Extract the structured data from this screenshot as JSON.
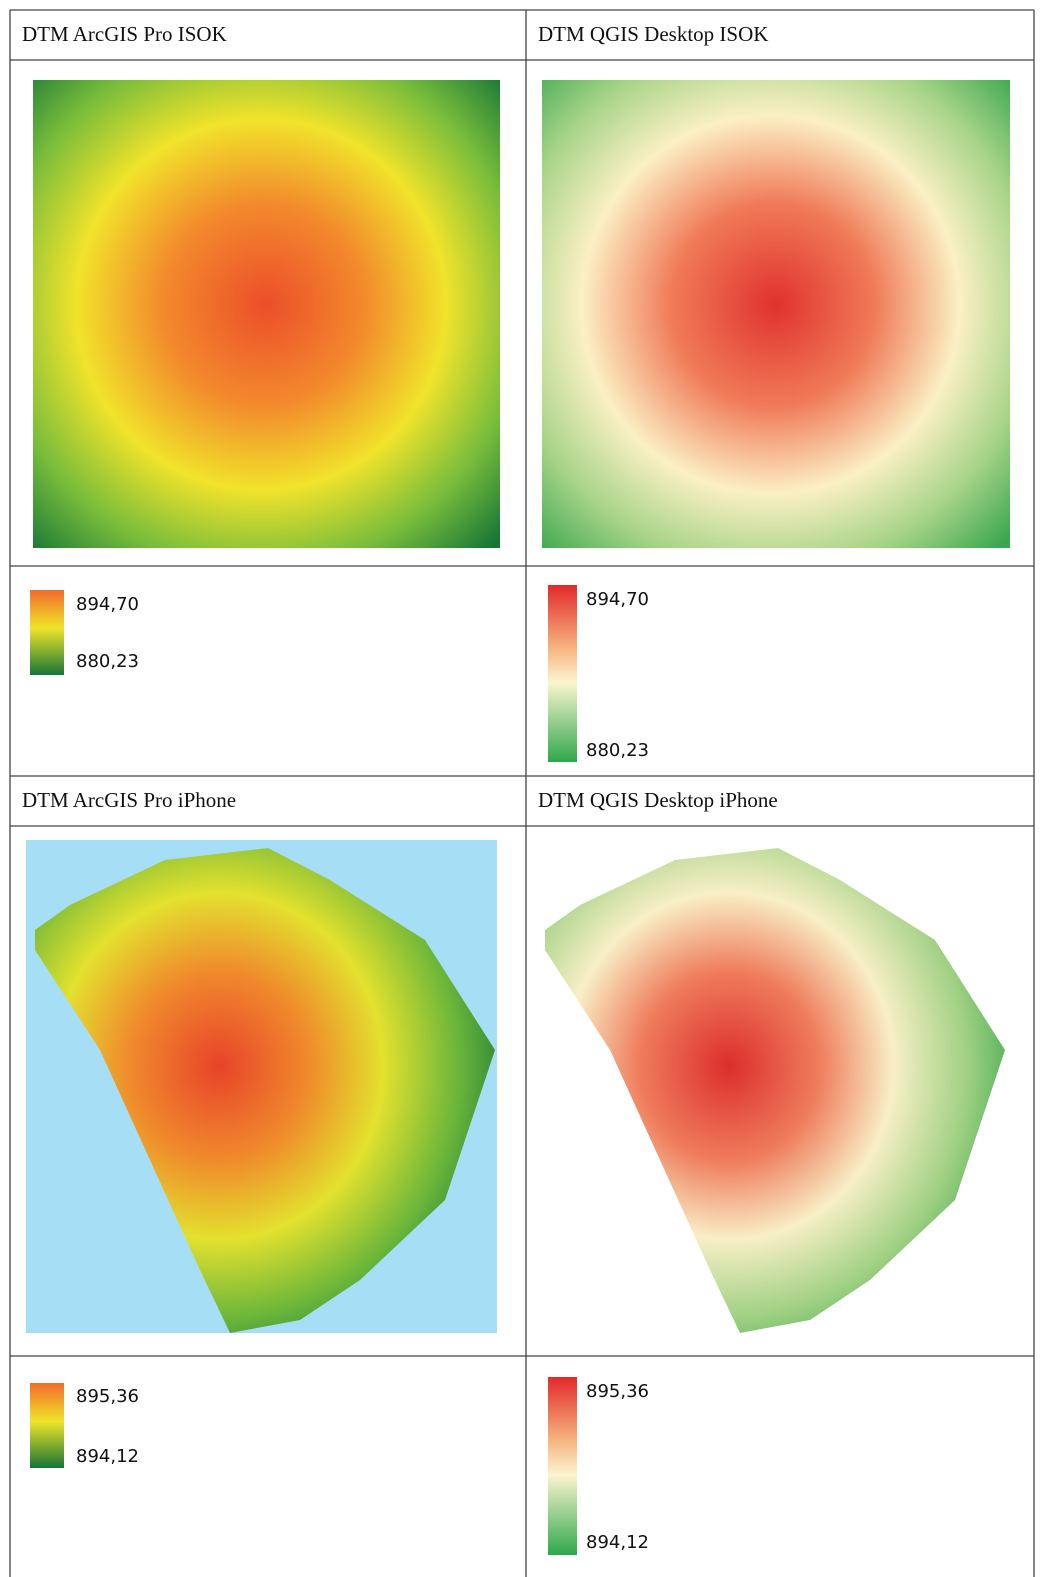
{
  "panels": [
    {
      "title": "DTM ArcGIS Pro ISOK",
      "legend": {
        "max": "894,70",
        "min": "880,23"
      }
    },
    {
      "title": "DTM QGIS Desktop ISOK",
      "legend": {
        "max": "894,70",
        "min": "880,23"
      }
    },
    {
      "title": "DTM ArcGIS Pro iPhone",
      "legend": {
        "max": "895,36",
        "min": "894,12"
      }
    },
    {
      "title": "DTM QGIS Desktop iPhone",
      "legend": {
        "max": "895,36",
        "min": "894,12"
      }
    }
  ]
}
